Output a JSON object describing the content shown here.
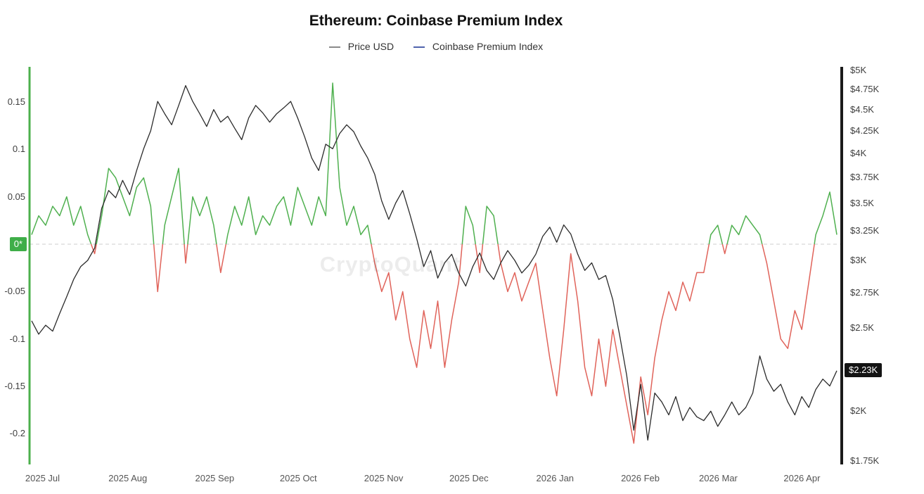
{
  "chart": {
    "title": "Ethereum: Coinbase Premium Index",
    "watermark": "CryptoQuant"
  },
  "legend": [
    {
      "label": "Price USD",
      "color": "#8a8a8a"
    },
    {
      "label": "Coinbase Premium Index",
      "color": "#5064ad"
    }
  ],
  "badges": {
    "zero": {
      "label": "0*",
      "bg": "#3fae49",
      "text_color": "#ffffff"
    },
    "price": {
      "label": "$2.23K",
      "bg": "#141414",
      "text_color": "#ffffff"
    }
  },
  "colors": {
    "price_line": "#2b2b2b",
    "premium_positive": "#4fb04f",
    "premium_negative": "#e0635a",
    "left_axis": "#4cb04c",
    "right_axis": "#1a1a1a",
    "zero_line": "#cccccc"
  },
  "chart_data": {
    "type": "line",
    "title": "Ethereum: Coinbase Premium Index",
    "legend_position": "top",
    "grid": false,
    "zero_reference_line": true,
    "current_price_k": 2.23,
    "x_axis": {
      "ticks": [
        {
          "t": 0.016,
          "label": "2025 Jul"
        },
        {
          "t": 0.121,
          "label": "2025 Aug"
        },
        {
          "t": 0.228,
          "label": "2025 Sep"
        },
        {
          "t": 0.331,
          "label": "2025 Oct"
        },
        {
          "t": 0.436,
          "label": "2025 Nov"
        },
        {
          "t": 0.541,
          "label": "2025 Dec"
        },
        {
          "t": 0.647,
          "label": "2026 Jan"
        },
        {
          "t": 0.752,
          "label": "2026 Feb"
        },
        {
          "t": 0.848,
          "label": "2026 Mar"
        },
        {
          "t": 0.951,
          "label": "2026 Apr"
        }
      ]
    },
    "left_axis": {
      "title": "Coinbase Premium Index",
      "scale": "linear",
      "range": [
        -0.235,
        0.187
      ],
      "ticks": [
        {
          "v": 0.15,
          "label": "0.15"
        },
        {
          "v": 0.1,
          "label": "0.1"
        },
        {
          "v": 0.05,
          "label": "0.05"
        },
        {
          "v": -0.05,
          "label": "-0.05"
        },
        {
          "v": -0.1,
          "label": "-0.1"
        },
        {
          "v": -0.15,
          "label": "-0.15"
        },
        {
          "v": -0.2,
          "label": "-0.2"
        }
      ],
      "zero_badge": "0*"
    },
    "right_axis": {
      "title": "Price USD",
      "scale": "log",
      "range_k_usd": [
        1.75,
        5.0
      ],
      "ticks": [
        {
          "v": 5.0,
          "label": "$5K"
        },
        {
          "v": 4.75,
          "label": "$4.75K"
        },
        {
          "v": 4.5,
          "label": "$4.5K"
        },
        {
          "v": 4.25,
          "label": "$4.25K"
        },
        {
          "v": 4.0,
          "label": "$4K"
        },
        {
          "v": 3.75,
          "label": "$3.75K"
        },
        {
          "v": 3.5,
          "label": "$3.5K"
        },
        {
          "v": 3.25,
          "label": "$3.25K"
        },
        {
          "v": 3.0,
          "label": "$3K"
        },
        {
          "v": 2.75,
          "label": "$2.75K"
        },
        {
          "v": 2.5,
          "label": "$2.5K"
        },
        {
          "v": 2.0,
          "label": "$2K"
        },
        {
          "v": 1.75,
          "label": "$1.75K"
        }
      ]
    },
    "series": [
      {
        "name": "Price USD",
        "axis": "right",
        "unit": "K USD",
        "values": [
          2.55,
          2.46,
          2.52,
          2.48,
          2.6,
          2.72,
          2.85,
          2.95,
          3.0,
          3.1,
          3.45,
          3.62,
          3.55,
          3.72,
          3.58,
          3.82,
          4.05,
          4.25,
          4.6,
          4.45,
          4.32,
          4.55,
          4.8,
          4.6,
          4.45,
          4.3,
          4.5,
          4.35,
          4.42,
          4.28,
          4.15,
          4.4,
          4.55,
          4.46,
          4.35,
          4.45,
          4.52,
          4.6,
          4.4,
          4.18,
          3.95,
          3.82,
          4.1,
          4.05,
          4.22,
          4.32,
          4.24,
          4.08,
          3.95,
          3.78,
          3.52,
          3.35,
          3.5,
          3.62,
          3.4,
          3.18,
          2.95,
          3.08,
          2.86,
          2.98,
          3.05,
          2.9,
          2.8,
          2.95,
          3.06,
          2.92,
          2.85,
          2.98,
          3.08,
          3.0,
          2.9,
          2.96,
          3.05,
          3.2,
          3.28,
          3.15,
          3.3,
          3.22,
          3.05,
          2.92,
          2.98,
          2.85,
          2.88,
          2.7,
          2.45,
          2.2,
          1.9,
          2.15,
          1.85,
          2.1,
          2.05,
          1.98,
          2.08,
          1.95,
          2.02,
          1.97,
          1.95,
          2.0,
          1.92,
          1.98,
          2.05,
          1.98,
          2.02,
          2.1,
          2.32,
          2.18,
          2.11,
          2.15,
          2.05,
          1.98,
          2.08,
          2.02,
          2.12,
          2.18,
          2.14,
          2.23
        ]
      },
      {
        "name": "Coinbase Premium Index",
        "axis": "left",
        "unit": "index",
        "values": [
          0.01,
          0.03,
          0.02,
          0.04,
          0.03,
          0.05,
          0.02,
          0.04,
          0.01,
          -0.01,
          0.03,
          0.08,
          0.07,
          0.05,
          0.03,
          0.06,
          0.07,
          0.04,
          -0.05,
          0.02,
          0.05,
          0.08,
          -0.02,
          0.05,
          0.03,
          0.05,
          0.02,
          -0.03,
          0.01,
          0.04,
          0.02,
          0.05,
          0.01,
          0.03,
          0.02,
          0.04,
          0.05,
          0.02,
          0.06,
          0.04,
          0.02,
          0.05,
          0.03,
          0.17,
          0.06,
          0.02,
          0.04,
          0.01,
          0.02,
          -0.02,
          -0.05,
          -0.03,
          -0.08,
          -0.05,
          -0.1,
          -0.13,
          -0.07,
          -0.11,
          -0.06,
          -0.13,
          -0.08,
          -0.04,
          0.04,
          0.02,
          -0.03,
          0.04,
          0.03,
          -0.02,
          -0.05,
          -0.03,
          -0.06,
          -0.04,
          -0.02,
          -0.07,
          -0.12,
          -0.16,
          -0.09,
          -0.01,
          -0.06,
          -0.13,
          -0.16,
          -0.1,
          -0.15,
          -0.09,
          -0.13,
          -0.17,
          -0.21,
          -0.14,
          -0.18,
          -0.12,
          -0.08,
          -0.05,
          -0.07,
          -0.04,
          -0.06,
          -0.03,
          -0.03,
          0.01,
          0.02,
          -0.01,
          0.02,
          0.01,
          0.03,
          0.02,
          0.01,
          -0.02,
          -0.06,
          -0.1,
          -0.11,
          -0.07,
          -0.09,
          -0.04,
          0.01,
          0.03,
          0.055,
          0.01
        ]
      }
    ]
  }
}
